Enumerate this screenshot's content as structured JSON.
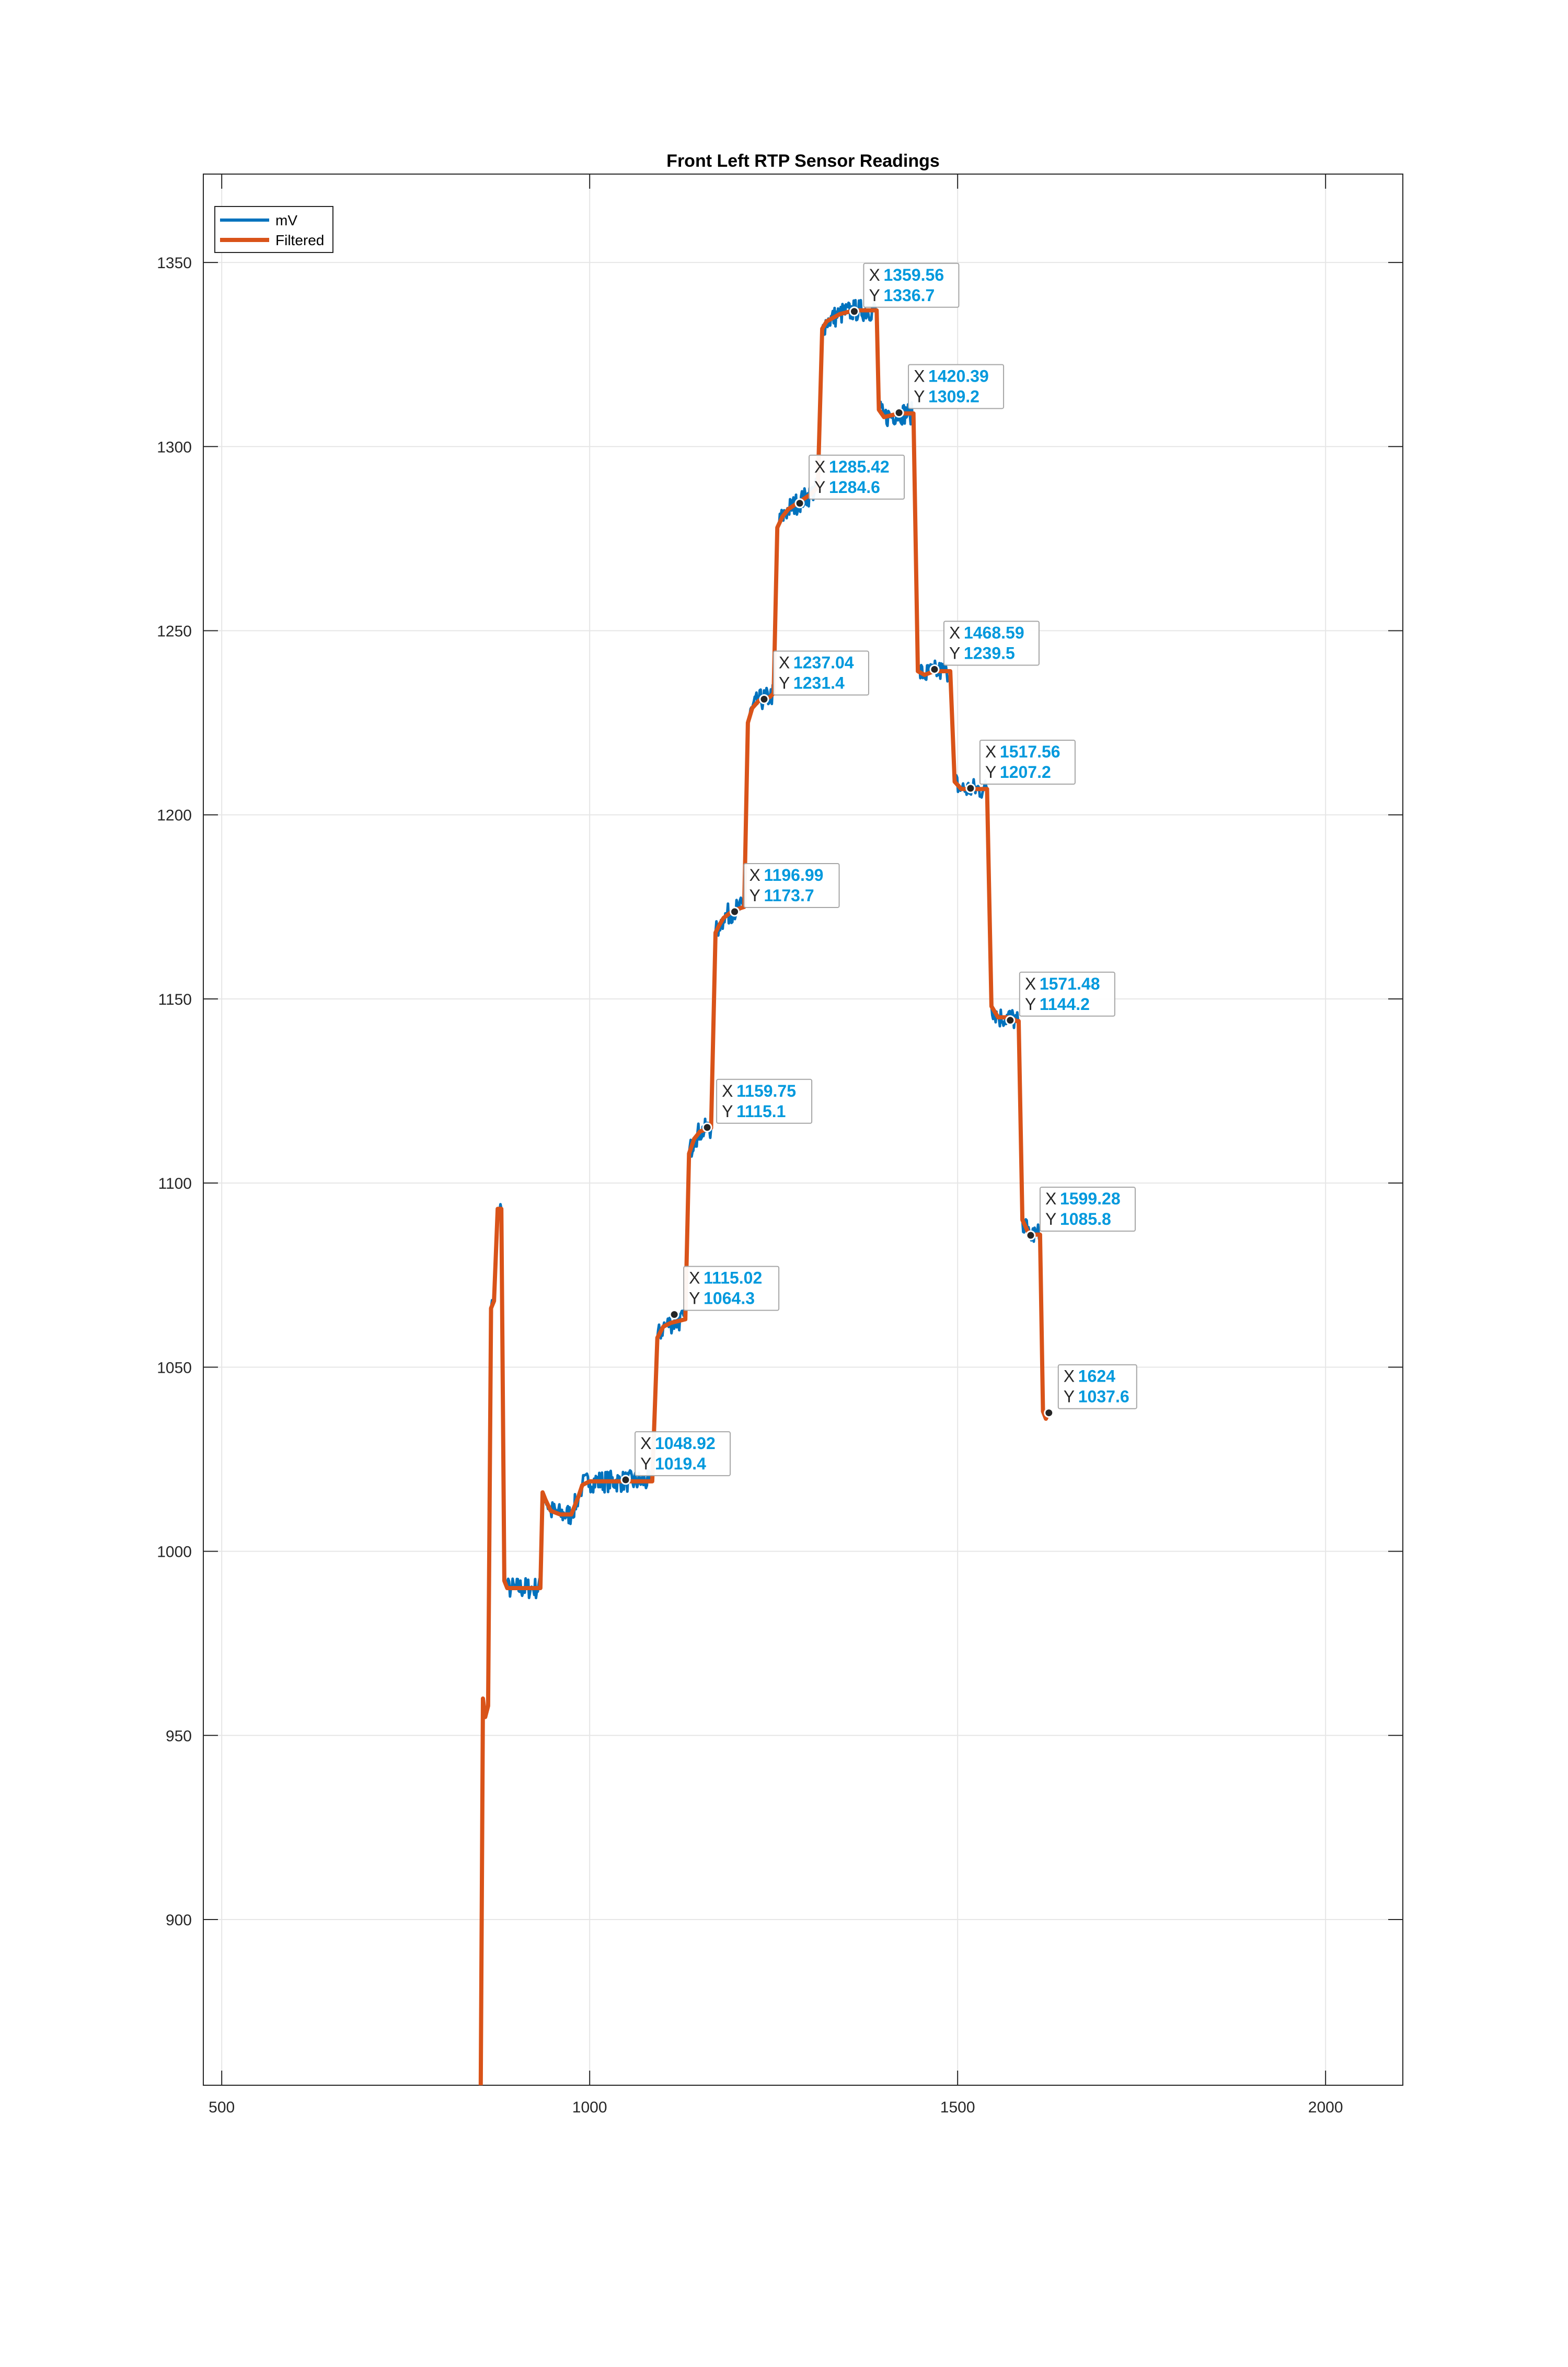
{
  "chart_data": {
    "type": "line",
    "title": "Front Left RTP Sensor Readings",
    "xlabel": "",
    "ylabel": "",
    "xlim": [
      475,
      2105
    ],
    "ylim": [
      855,
      1374
    ],
    "xticks": [
      500,
      1000,
      1500,
      2000
    ],
    "yticks": [
      900,
      950,
      1000,
      1050,
      1100,
      1150,
      1200,
      1250,
      1300,
      1350
    ],
    "grid": true,
    "legend_position": "top-left",
    "colors": {
      "mV": "#0072bd",
      "Filtered": "#d95319",
      "datatip_value": "#0099dd"
    },
    "series": [
      {
        "name": "mV",
        "noise": 3,
        "x": [
          852,
          855,
          858,
          862,
          866,
          870,
          875,
          880,
          884,
          888,
          893,
          900,
          920,
          933,
          936,
          940,
          947,
          960,
          975,
          985,
          990,
          1000,
          1050,
          1085,
          1092,
          1100,
          1110,
          1130,
          1135,
          1142,
          1150,
          1165,
          1171,
          1176,
          1182,
          1195,
          1210,
          1215,
          1221,
          1230,
          1245,
          1250,
          1255,
          1262,
          1270,
          1285,
          1300,
          1310,
          1316,
          1322,
          1340,
          1360,
          1390,
          1393,
          1400,
          1420,
          1435,
          1440,
          1446,
          1455,
          1468,
          1485,
          1490,
          1496,
          1505,
          1517,
          1535,
          1540,
          1546,
          1555,
          1572,
          1580,
          1583,
          1588,
          1595,
          1599,
          1608,
          1612,
          1616,
          1620,
          1624
        ],
        "y": [
          855,
          960,
          955,
          958,
          1066,
          1068,
          1093,
          1093,
          992,
          990,
          990,
          990,
          990,
          990,
          1016,
          1014,
          1011,
          1010,
          1010,
          1015,
          1018,
          1019,
          1019,
          1019,
          1058,
          1061,
          1062,
          1063,
          1108,
          1112,
          1114,
          1115,
          1168,
          1170,
          1172,
          1174,
          1175,
          1225,
          1229,
          1231,
          1232,
          1233,
          1278,
          1281,
          1283,
          1285,
          1287,
          1289,
          1332,
          1334,
          1336,
          1337,
          1337,
          1310,
          1308,
          1309,
          1309,
          1309,
          1239,
          1238,
          1239,
          1239,
          1239,
          1209,
          1207,
          1207,
          1207,
          1207,
          1148,
          1145,
          1145,
          1144,
          1144,
          1090,
          1087,
          1086,
          1086,
          1086,
          1038,
          1036,
          1038
        ]
      },
      {
        "name": "Filtered",
        "noise": 0,
        "x": [
          852,
          855,
          858,
          862,
          866,
          870,
          875,
          880,
          884,
          888,
          893,
          900,
          920,
          933,
          936,
          940,
          947,
          960,
          975,
          985,
          990,
          1000,
          1050,
          1085,
          1092,
          1100,
          1110,
          1130,
          1135,
          1142,
          1150,
          1165,
          1171,
          1176,
          1182,
          1195,
          1210,
          1215,
          1221,
          1230,
          1245,
          1250,
          1255,
          1262,
          1270,
          1285,
          1300,
          1310,
          1316,
          1322,
          1340,
          1360,
          1390,
          1393,
          1400,
          1420,
          1435,
          1440,
          1446,
          1455,
          1468,
          1485,
          1490,
          1496,
          1505,
          1517,
          1535,
          1540,
          1546,
          1555,
          1572,
          1580,
          1583,
          1588,
          1595,
          1599,
          1608,
          1612,
          1616,
          1620,
          1624
        ],
        "y": [
          855,
          960,
          955,
          958,
          1066,
          1068,
          1093,
          1093,
          992,
          990,
          990,
          990,
          990,
          990,
          1016,
          1014,
          1011,
          1010,
          1010,
          1015,
          1018,
          1019,
          1019,
          1019,
          1058,
          1061,
          1062,
          1063,
          1108,
          1112,
          1114,
          1115,
          1168,
          1170,
          1172,
          1174,
          1175,
          1225,
          1229,
          1231,
          1232,
          1233,
          1278,
          1281,
          1283,
          1285,
          1287,
          1289,
          1332,
          1334,
          1336,
          1337,
          1337,
          1310,
          1308,
          1309,
          1309,
          1309,
          1239,
          1238,
          1239,
          1239,
          1239,
          1209,
          1207,
          1207,
          1207,
          1207,
          1148,
          1145,
          1145,
          1144,
          1144,
          1090,
          1087,
          1086,
          1086,
          1086,
          1038,
          1036,
          1038
        ]
      }
    ],
    "datatips": [
      {
        "x": 1048.92,
        "y": 1019.4,
        "x_text": "1048.92",
        "y_text": "1019.4"
      },
      {
        "x": 1115.02,
        "y": 1064.3,
        "x_text": "1115.02",
        "y_text": "1064.3"
      },
      {
        "x": 1159.75,
        "y": 1115.1,
        "x_text": "1159.75",
        "y_text": "1115.1"
      },
      {
        "x": 1196.99,
        "y": 1173.7,
        "x_text": "1196.99",
        "y_text": "1173.7"
      },
      {
        "x": 1237.04,
        "y": 1231.4,
        "x_text": "1237.04",
        "y_text": "1231.4"
      },
      {
        "x": 1285.42,
        "y": 1284.6,
        "x_text": "1285.42",
        "y_text": "1284.6"
      },
      {
        "x": 1359.56,
        "y": 1336.7,
        "x_text": "1359.56",
        "y_text": "1336.7"
      },
      {
        "x": 1420.39,
        "y": 1309.2,
        "x_text": "1420.39",
        "y_text": "1309.2"
      },
      {
        "x": 1468.59,
        "y": 1239.5,
        "x_text": "1468.59",
        "y_text": "1239.5"
      },
      {
        "x": 1517.56,
        "y": 1207.2,
        "x_text": "1517.56",
        "y_text": "1207.2"
      },
      {
        "x": 1571.48,
        "y": 1144.2,
        "x_text": "1571.48",
        "y_text": "1144.2"
      },
      {
        "x": 1599.28,
        "y": 1085.8,
        "x_text": "1599.28",
        "y_text": "1085.8"
      },
      {
        "x": 1624,
        "y": 1037.6,
        "x_text": "1624",
        "y_text": "1037.6"
      }
    ],
    "datatip_labels": {
      "x": "X",
      "y": "Y"
    }
  }
}
